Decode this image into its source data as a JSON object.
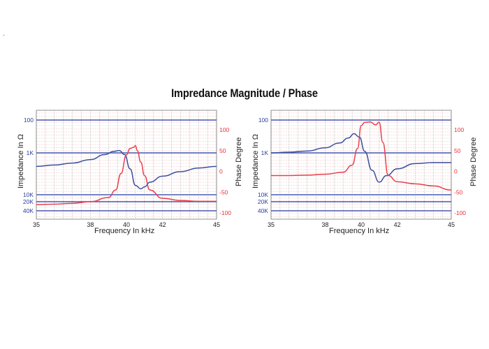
{
  "title": "Impredance Magnitude / Phase",
  "colors": {
    "magnitude": "#3d4f9e",
    "phase": "#e8404a",
    "major_h_line": "#4a5ab0",
    "minor_grid": "#f3b9bc",
    "vertical_grid": "#9a9a9a",
    "mag_tick": "#2a3c9a",
    "phase_tick": "#e8303a"
  },
  "chart_data": [
    {
      "type": "line",
      "title": "",
      "xlabel": "Frequency In kHz",
      "ylabel_left": "Impedance In Ω",
      "ylabel_right": "Phase Degree",
      "xlim": [
        35,
        45
      ],
      "x_ticks": [
        35,
        38,
        40,
        42,
        45
      ],
      "y_left_ticks": [
        "100",
        "1K",
        "10K",
        "20K",
        "40K"
      ],
      "y_right_ticks": [
        "100",
        "50",
        "0",
        "-50",
        "-100"
      ],
      "y_right_lim": [
        -100,
        130
      ],
      "grid": true,
      "series": [
        {
          "axis": "left",
          "unit": "impedance ohm (log scale, inverted)",
          "x": [
            35,
            36,
            37,
            38,
            38.8,
            39.3,
            39.6,
            39.9,
            40.2,
            40.5,
            40.8,
            41,
            41.3,
            42,
            43,
            44,
            45
          ],
          "y": [
            2100,
            1950,
            1750,
            1450,
            1100,
            900,
            850,
            1100,
            2400,
            6000,
            7200,
            6500,
            5000,
            3600,
            2800,
            2300,
            2100
          ]
        },
        {
          "axis": "right",
          "unit": "phase degree",
          "x": [
            35,
            36,
            37,
            38,
            39,
            39.4,
            39.7,
            40,
            40.2,
            40.4,
            40.5,
            40.6,
            40.8,
            41,
            41.3,
            42,
            43,
            44,
            45
          ],
          "y": [
            -80,
            -79,
            -77,
            -73,
            -63,
            -45,
            -5,
            40,
            55,
            58,
            62,
            50,
            22,
            -10,
            -45,
            -65,
            -70,
            -72,
            -72
          ]
        }
      ]
    },
    {
      "type": "line",
      "title": "",
      "xlabel": "Frequency In kHz",
      "ylabel_left": "Impedance In Ω",
      "ylabel_right": "Phase Degree",
      "xlim": [
        35,
        45
      ],
      "x_ticks": [
        35,
        38,
        40,
        42,
        45
      ],
      "y_left_ticks": [
        "100",
        "1K",
        "10K",
        "20K",
        "40K"
      ],
      "y_right_ticks": [
        "100",
        "50",
        "0",
        "-50",
        "-100"
      ],
      "y_right_lim": [
        -100,
        130
      ],
      "grid": true,
      "series": [
        {
          "axis": "left",
          "unit": "impedance ohm (log scale, inverted)",
          "x": [
            35,
            36,
            37,
            38,
            38.8,
            39.3,
            39.6,
            39.9,
            40.2,
            40.6,
            41,
            41.4,
            42,
            43,
            44,
            45
          ],
          "y": [
            1000,
            950,
            880,
            700,
            500,
            350,
            260,
            330,
            900,
            2600,
            5000,
            3500,
            2400,
            1800,
            1700,
            1700
          ]
        },
        {
          "axis": "right",
          "unit": "phase degree",
          "x": [
            35,
            36,
            37,
            38,
            39,
            39.5,
            39.8,
            40,
            40.2,
            40.5,
            40.8,
            41,
            41.2,
            41.5,
            42,
            43,
            44,
            45
          ],
          "y": [
            -10,
            -10,
            -9,
            -7,
            -2,
            15,
            55,
            110,
            118,
            119,
            112,
            118,
            70,
            -10,
            -25,
            -30,
            -35,
            -45
          ]
        }
      ]
    }
  ]
}
